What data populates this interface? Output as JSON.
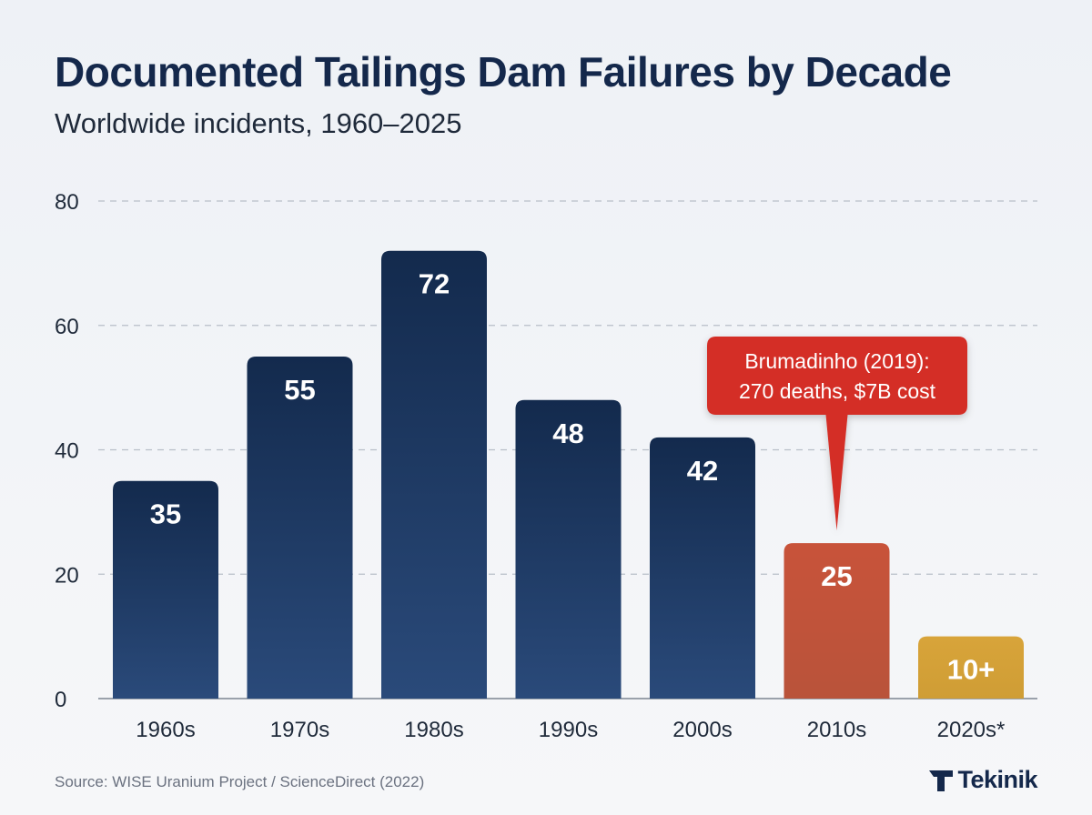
{
  "title": "Documented Tailings Dam Failures by Decade",
  "subtitle": "Worldwide incidents, 1960–2025",
  "source": "Source: WISE Uranium Project / ScienceDirect (2022)",
  "brand": "Tekinik",
  "chart_data": {
    "type": "bar",
    "title": "Documented Tailings Dam Failures by Decade",
    "subtitle": "Worldwide incidents, 1960–2025",
    "categories": [
      "1960s",
      "1970s",
      "1980s",
      "1990s",
      "2000s",
      "2010s",
      "2020s*"
    ],
    "values": [
      35,
      55,
      72,
      48,
      42,
      25,
      10
    ],
    "value_labels": [
      "35",
      "55",
      "72",
      "48",
      "42",
      "25",
      "10+"
    ],
    "colors": [
      "#1b3358",
      "#1b3358",
      "#1b3358",
      "#1b3358",
      "#1b3358",
      "#c4533a",
      "#d4a23a"
    ],
    "ylim": [
      0,
      80
    ],
    "yticks": [
      0,
      20,
      40,
      60,
      80
    ],
    "grid": true,
    "annotation": {
      "category": "2010s",
      "lines": [
        "Brumadinho (2019):",
        "270 deaths, $7B cost"
      ],
      "color": "#d42e25"
    }
  }
}
